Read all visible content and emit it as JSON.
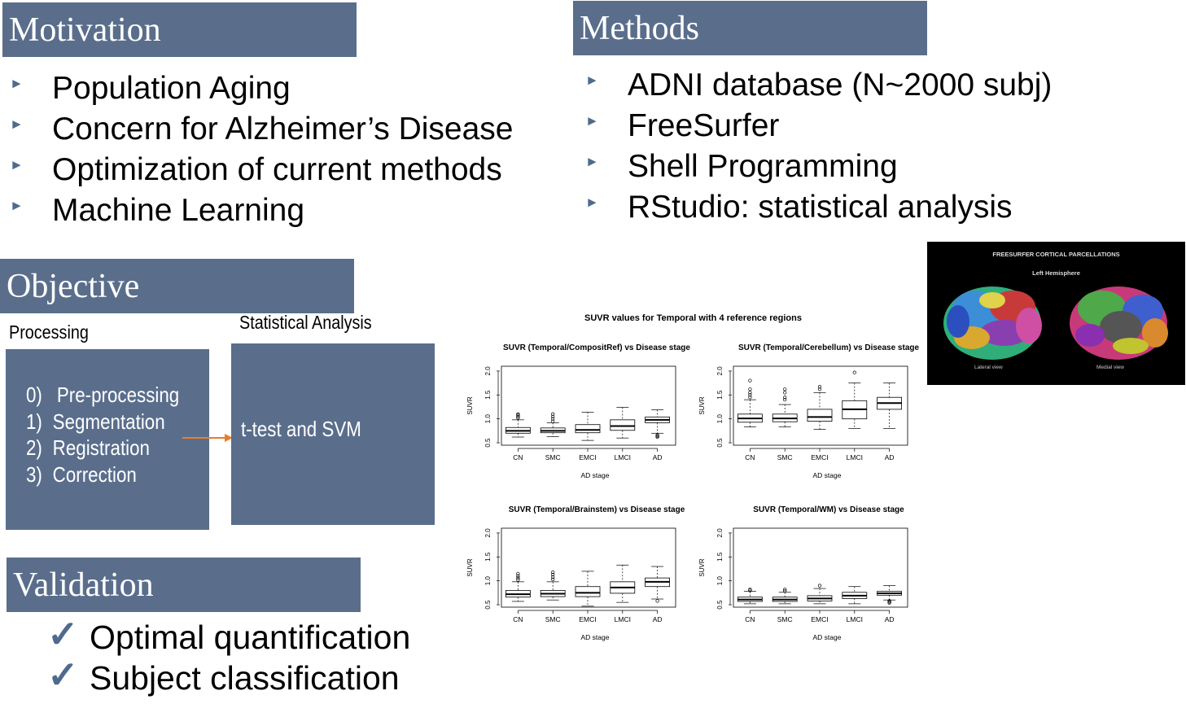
{
  "motivation": {
    "title": "Motivation",
    "items": [
      "Population Aging",
      "Concern for Alzheimer’s Disease",
      "Optimization of current methods",
      "Machine Learning"
    ]
  },
  "methods": {
    "title": "Methods",
    "items": [
      "ADNI database (N~2000 subj)",
      "FreeSurfer",
      "Shell Programming",
      "RStudio: statistical analysis"
    ]
  },
  "objective": {
    "title": "Objective",
    "processing_label": "Processing",
    "stats_label": "Statistical Analysis",
    "steps": [
      {
        "num": "0)",
        "text": "Pre-processing"
      },
      {
        "num": "1)",
        "text": "Segmentation"
      },
      {
        "num": "2)",
        "text": "Registration"
      },
      {
        "num": "3)",
        "text": "Correction"
      }
    ],
    "stats_text": "t-test and SVM"
  },
  "validation": {
    "title": "Validation",
    "items": [
      "Optimal quantification",
      "Subject classification"
    ]
  },
  "brain_image": {
    "title": "FREESURFER CORTICAL PARCELLATIONS",
    "subtitle": "Left Hemisphere",
    "left_caption": "Lateral view",
    "right_caption": "Medial view"
  },
  "figure_title": "SUVR values for Temporal with 4 reference regions",
  "chart_data": [
    {
      "type": "boxplot",
      "title": "SUVR (Temporal/CompositRef) vs Disease stage",
      "xlabel": "AD stage",
      "ylabel": "SUVR",
      "categories": [
        "CN",
        "SMC",
        "EMCI",
        "LMCI",
        "AD"
      ],
      "yticks": [
        "0.5",
        "1.0",
        "1.5",
        "2.0"
      ],
      "ylim": [
        0.45,
        2.1
      ],
      "boxes": [
        {
          "whisker_low": 0.62,
          "q1": 0.7,
          "median": 0.75,
          "q3": 0.82,
          "whisker_high": 0.98,
          "outliers": [
            1.02,
            1.05,
            1.08,
            1.1
          ]
        },
        {
          "whisker_low": 0.63,
          "q1": 0.71,
          "median": 0.75,
          "q3": 0.81,
          "whisker_high": 0.92,
          "outliers": [
            0.95,
            1.0,
            1.05,
            1.1
          ]
        },
        {
          "whisker_low": 0.55,
          "q1": 0.71,
          "median": 0.77,
          "q3": 0.88,
          "whisker_high": 1.14,
          "outliers": []
        },
        {
          "whisker_low": 0.6,
          "q1": 0.76,
          "median": 0.85,
          "q3": 0.98,
          "whisker_high": 1.24,
          "outliers": []
        },
        {
          "whisker_low": 0.7,
          "q1": 0.92,
          "median": 0.98,
          "q3": 1.04,
          "whisker_high": 1.19,
          "outliers": [
            0.62,
            0.64,
            0.66
          ]
        }
      ]
    },
    {
      "type": "boxplot",
      "title": "SUVR (Temporal/Cerebellum) vs Disease stage",
      "xlabel": "AD stage",
      "ylabel": "SUVR",
      "categories": [
        "CN",
        "SMC",
        "EMCI",
        "LMCI",
        "AD"
      ],
      "yticks": [
        "0.5",
        "1.0",
        "1.5",
        "2.0"
      ],
      "ylim": [
        0.45,
        2.1
      ],
      "boxes": [
        {
          "whisker_low": 0.83,
          "q1": 0.93,
          "median": 1.01,
          "q3": 1.1,
          "whisker_high": 1.4,
          "outliers": [
            1.45,
            1.5,
            1.55,
            1.62,
            1.8
          ]
        },
        {
          "whisker_low": 0.83,
          "q1": 0.94,
          "median": 1.01,
          "q3": 1.1,
          "whisker_high": 1.3,
          "outliers": [
            1.4,
            1.45,
            1.55,
            1.62
          ]
        },
        {
          "whisker_low": 0.78,
          "q1": 0.95,
          "median": 1.04,
          "q3": 1.2,
          "whisker_high": 1.55,
          "outliers": [
            1.62,
            1.67
          ]
        },
        {
          "whisker_low": 0.8,
          "q1": 1.0,
          "median": 1.2,
          "q3": 1.38,
          "whisker_high": 1.75,
          "outliers": [
            1.97
          ]
        },
        {
          "whisker_low": 0.8,
          "q1": 1.2,
          "median": 1.33,
          "q3": 1.45,
          "whisker_high": 1.75,
          "outliers": []
        }
      ]
    },
    {
      "type": "boxplot",
      "title": "SUVR (Temporal/Brainstem) vs Disease stage",
      "xlabel": "AD stage",
      "ylabel": "SUVR",
      "categories": [
        "CN",
        "SMC",
        "EMCI",
        "LMCI",
        "AD"
      ],
      "yticks": [
        "0.5",
        "1.0",
        "1.5",
        "2.0"
      ],
      "ylim": [
        0.45,
        2.1
      ],
      "boxes": [
        {
          "whisker_low": 0.57,
          "q1": 0.66,
          "median": 0.72,
          "q3": 0.8,
          "whisker_high": 0.98,
          "outliers": [
            1.02,
            1.06,
            1.1,
            1.15
          ]
        },
        {
          "whisker_low": 0.6,
          "q1": 0.67,
          "median": 0.73,
          "q3": 0.8,
          "whisker_high": 0.98,
          "outliers": [
            1.03,
            1.08,
            1.13,
            1.18
          ]
        },
        {
          "whisker_low": 0.47,
          "q1": 0.67,
          "median": 0.75,
          "q3": 0.88,
          "whisker_high": 1.2,
          "outliers": []
        },
        {
          "whisker_low": 0.55,
          "q1": 0.74,
          "median": 0.86,
          "q3": 0.98,
          "whisker_high": 1.33,
          "outliers": []
        },
        {
          "whisker_low": 0.62,
          "q1": 0.88,
          "median": 0.98,
          "q3": 1.06,
          "whisker_high": 1.3,
          "outliers": [
            0.58
          ]
        }
      ]
    },
    {
      "type": "boxplot",
      "title": "SUVR (Temporal/WM) vs Disease stage",
      "xlabel": "AD stage",
      "ylabel": "SUVR",
      "categories": [
        "CN",
        "SMC",
        "EMCI",
        "LMCI",
        "AD"
      ],
      "yticks": [
        "0.5",
        "1.0",
        "1.5",
        "2.0"
      ],
      "ylim": [
        0.45,
        2.1
      ],
      "boxes": [
        {
          "whisker_low": 0.52,
          "q1": 0.57,
          "median": 0.61,
          "q3": 0.66,
          "whisker_high": 0.78,
          "outliers": [
            0.8,
            0.82
          ]
        },
        {
          "whisker_low": 0.52,
          "q1": 0.57,
          "median": 0.61,
          "q3": 0.66,
          "whisker_high": 0.76,
          "outliers": [
            0.79,
            0.82
          ]
        },
        {
          "whisker_low": 0.52,
          "q1": 0.58,
          "median": 0.63,
          "q3": 0.69,
          "whisker_high": 0.84,
          "outliers": [
            0.9
          ]
        },
        {
          "whisker_low": 0.52,
          "q1": 0.63,
          "median": 0.69,
          "q3": 0.76,
          "whisker_high": 0.88,
          "outliers": []
        },
        {
          "whisker_low": 0.6,
          "q1": 0.7,
          "median": 0.74,
          "q3": 0.78,
          "whisker_high": 0.9,
          "outliers": [
            0.54,
            0.56,
            0.58
          ]
        }
      ]
    }
  ]
}
